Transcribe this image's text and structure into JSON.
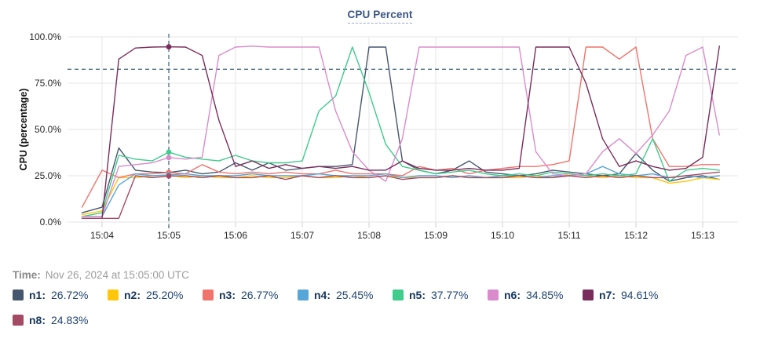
{
  "header": {
    "title": "CPU Percent"
  },
  "footer": {
    "time_label": "Time:",
    "time_value": "Nov 26, 2024 at 15:05:00 UTC"
  },
  "legend": {
    "items": [
      {
        "name": "n1",
        "value": "26.72%",
        "color": "#46566e"
      },
      {
        "name": "n2",
        "value": "25.20%",
        "color": "#ffc60b"
      },
      {
        "name": "n3",
        "value": "26.77%",
        "color": "#f0736c"
      },
      {
        "name": "n4",
        "value": "25.45%",
        "color": "#57a6d8"
      },
      {
        "name": "n5",
        "value": "37.77%",
        "color": "#3fcc8c"
      },
      {
        "name": "n6",
        "value": "34.85%",
        "color": "#da8bcb"
      },
      {
        "name": "n7",
        "value": "94.61%",
        "color": "#7a2d5c"
      },
      {
        "name": "n8",
        "value": "24.83%",
        "color": "#a54a64"
      }
    ]
  },
  "chart_data": {
    "type": "line",
    "title": "CPU Percent",
    "xlabel": "",
    "ylabel": "CPU (percentage)",
    "ylim": [
      0,
      100
    ],
    "xlim_minutes_after_1500": [
      3.45,
      13.55
    ],
    "grid": true,
    "legend_position": "bottom",
    "threshold_line_y": 82.5,
    "crosshair_x_minute": 5,
    "crosshair_time_label": "15:05",
    "x_tick_minutes": [
      4,
      5,
      6,
      7,
      8,
      9,
      10,
      11,
      12,
      13
    ],
    "x_tick_labels": [
      "15:04",
      "15:05",
      "15:06",
      "15:07",
      "15:08",
      "15:09",
      "15:10",
      "15:11",
      "15:12",
      "15:13"
    ],
    "y_ticks": [
      0,
      25,
      50,
      75,
      100
    ],
    "y_tick_labels": [
      "0.0%",
      "25.0%",
      "50.0%",
      "75.0%",
      "100.0%"
    ],
    "x": [
      3.7,
      4,
      4.25,
      4.5,
      4.75,
      5,
      5.25,
      5.5,
      5.75,
      6,
      6.25,
      6.5,
      6.75,
      7,
      7.25,
      7.5,
      7.75,
      8,
      8.25,
      8.5,
      8.75,
      9,
      9.25,
      9.5,
      9.75,
      10,
      10.25,
      10.5,
      10.75,
      11,
      11.25,
      11.5,
      11.75,
      12,
      12.25,
      12.5,
      12.75,
      13,
      13.25
    ],
    "series": [
      {
        "name": "n1",
        "color": "#46566e",
        "values": [
          5,
          8,
          40,
          28,
          27,
          26.72,
          28,
          26,
          27,
          32,
          28,
          32,
          28,
          29,
          30,
          30,
          31,
          94.5,
          94.5,
          33,
          28,
          26,
          28,
          33,
          27,
          26,
          25,
          26,
          28,
          27,
          26,
          25,
          26,
          37,
          28,
          22,
          24,
          25,
          23
        ]
      },
      {
        "name": "n2",
        "color": "#ffc60b",
        "values": [
          4,
          6,
          24,
          24,
          25,
          25.2,
          24,
          25,
          24,
          24,
          25,
          24,
          24,
          25,
          24,
          24,
          25,
          24,
          25,
          24,
          24,
          24,
          25,
          24,
          24,
          24,
          24,
          25,
          24,
          26,
          25,
          24,
          25,
          24,
          24,
          21,
          22,
          24,
          23
        ]
      },
      {
        "name": "n3",
        "color": "#f0736c",
        "values": [
          8,
          28,
          24,
          26,
          26,
          26.77,
          26,
          31,
          27,
          26,
          27,
          26,
          27,
          26,
          26,
          28,
          26,
          26,
          26,
          25,
          30,
          28,
          29,
          26,
          28,
          29,
          30,
          30,
          31,
          33,
          94.5,
          94.5,
          88,
          94.5,
          45,
          30,
          30,
          31,
          31
        ]
      },
      {
        "name": "n4",
        "color": "#57a6d8",
        "values": [
          3,
          3,
          20,
          26,
          25,
          25.45,
          26,
          25,
          25,
          25,
          26,
          25,
          25,
          25,
          26,
          25,
          25,
          25,
          26,
          24,
          25,
          25,
          24,
          25,
          24,
          25,
          25,
          24,
          25,
          25,
          26,
          30,
          26,
          25,
          26,
          24,
          25,
          24,
          25
        ]
      },
      {
        "name": "n5",
        "color": "#3fcc8c",
        "values": [
          3,
          5,
          36,
          34,
          33,
          37.77,
          35,
          34,
          33,
          36,
          33,
          32,
          32,
          33,
          60,
          68,
          94.5,
          70,
          42,
          30,
          28,
          26,
          27,
          28,
          26,
          25,
          26,
          25,
          27,
          26,
          25,
          26,
          25,
          26,
          45,
          22,
          28,
          29,
          28
        ]
      },
      {
        "name": "n6",
        "color": "#da8bcb",
        "values": [
          3,
          3,
          30,
          31,
          32,
          34.85,
          34,
          35,
          90,
          94.5,
          95,
          94.5,
          94.5,
          94.5,
          94.5,
          60,
          38,
          28,
          22,
          45,
          94.5,
          94.5,
          94.5,
          94.5,
          94.5,
          94.5,
          94.5,
          38,
          26,
          25,
          26,
          38,
          45,
          37,
          47,
          60,
          90,
          94.5,
          47
        ]
      },
      {
        "name": "n7",
        "color": "#7a2d5c",
        "values": [
          2,
          2,
          88,
          94,
          94.5,
          94.61,
          94.5,
          90,
          55,
          30,
          33,
          29,
          31,
          29,
          30,
          29,
          30,
          28,
          28,
          33,
          29,
          28,
          28,
          29,
          28,
          28,
          29,
          94.5,
          94.5,
          94.5,
          75,
          45,
          30,
          33,
          30,
          28,
          29,
          35,
          95
        ]
      },
      {
        "name": "n8",
        "color": "#a54a64",
        "values": [
          2,
          2,
          2,
          25,
          24,
          24.83,
          25,
          24,
          25,
          24,
          24,
          25,
          23,
          25,
          24,
          25,
          24,
          24,
          25,
          23,
          24,
          24,
          25,
          24,
          24,
          24,
          25,
          24,
          24,
          25,
          24,
          25,
          24,
          25,
          24,
          24,
          25,
          26,
          27
        ]
      }
    ]
  },
  "style": {
    "grid_color": "#ededed",
    "tick_text_color": "#262626",
    "dashed_line_color": "#4e7082"
  }
}
